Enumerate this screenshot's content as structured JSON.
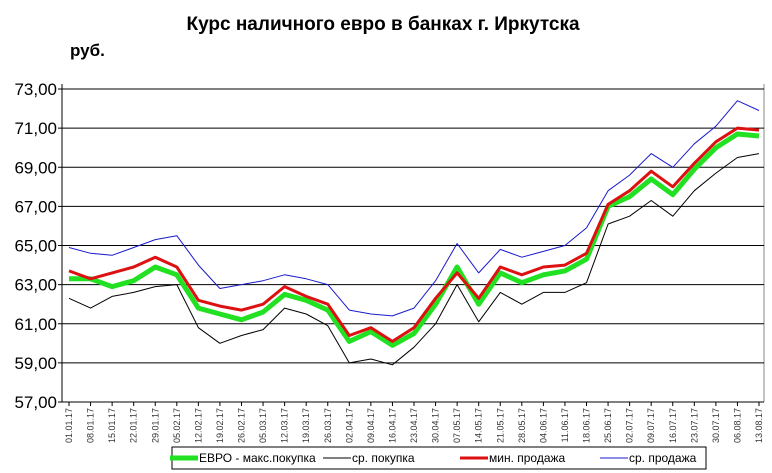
{
  "chart_data": {
    "type": "line",
    "title": "Курс наличного евро в банках г. Иркутска",
    "ylabel": "руб.",
    "ylim": [
      57,
      73
    ],
    "yticks": [
      "57,00",
      "59,00",
      "61,00",
      "63,00",
      "65,00",
      "67,00",
      "69,00",
      "71,00",
      "73,00"
    ],
    "grid": true,
    "legend_position": "bottom",
    "x": [
      "01.01.17",
      "08.01.17",
      "15.01.17",
      "22.01.17",
      "29.01.17",
      "05.02.17",
      "12.02.17",
      "19.02.17",
      "26.02.17",
      "05.03.17",
      "12.03.17",
      "19.03.17",
      "26.03.17",
      "02.04.17",
      "09.04.17",
      "16.04.17",
      "23.04.17",
      "30.04.17",
      "07.05.17",
      "14.05.17",
      "21.05.17",
      "28.05.17",
      "04.06.17",
      "11.06.17",
      "18.06.17",
      "25.06.17",
      "02.07.17",
      "09.07.17",
      "16.07.17",
      "23.07.17",
      "30.07.17",
      "06.08.17",
      "13.08.17"
    ],
    "series": [
      {
        "name": "ЕВРО - макс.покупка",
        "color": "#22e022",
        "values": [
          63.3,
          63.3,
          62.9,
          63.2,
          63.9,
          63.5,
          61.8,
          61.5,
          61.2,
          61.6,
          62.5,
          62.2,
          61.7,
          60.1,
          60.6,
          59.9,
          60.5,
          62.0,
          63.9,
          62.0,
          63.6,
          63.1,
          63.5,
          63.7,
          64.3,
          67.0,
          67.5,
          68.4,
          67.6,
          68.9,
          70.0,
          70.7,
          70.6
        ]
      },
      {
        "name": "ср. покупка",
        "color": "#000000",
        "values": [
          62.3,
          61.8,
          62.4,
          62.6,
          62.9,
          63.0,
          60.8,
          60.0,
          60.4,
          60.7,
          61.8,
          61.5,
          60.9,
          59.0,
          59.2,
          58.9,
          59.8,
          61.0,
          63.0,
          61.1,
          62.6,
          62.0,
          62.6,
          62.6,
          63.1,
          66.1,
          66.5,
          67.3,
          66.5,
          67.8,
          68.7,
          69.5,
          69.7
        ]
      },
      {
        "name": "мин. продажа",
        "color": "#dd1111",
        "values": [
          63.7,
          63.3,
          63.6,
          63.9,
          64.4,
          63.9,
          62.2,
          61.9,
          61.7,
          62.0,
          62.9,
          62.4,
          62.0,
          60.4,
          60.8,
          60.1,
          60.8,
          62.3,
          63.6,
          62.3,
          63.9,
          63.5,
          63.9,
          64.0,
          64.6,
          67.1,
          67.8,
          68.8,
          68.0,
          69.2,
          70.3,
          71.0,
          70.9
        ]
      },
      {
        "name": "ср. продажа",
        "color": "#1a1acc",
        "values": [
          64.9,
          64.6,
          64.5,
          64.9,
          65.3,
          65.5,
          64.0,
          62.8,
          63.0,
          63.2,
          63.5,
          63.3,
          63.0,
          61.7,
          61.5,
          61.4,
          61.8,
          63.2,
          65.1,
          63.6,
          64.8,
          64.4,
          64.7,
          65.0,
          65.9,
          67.8,
          68.6,
          69.7,
          69.0,
          70.2,
          71.1,
          72.4,
          71.9
        ]
      }
    ]
  }
}
